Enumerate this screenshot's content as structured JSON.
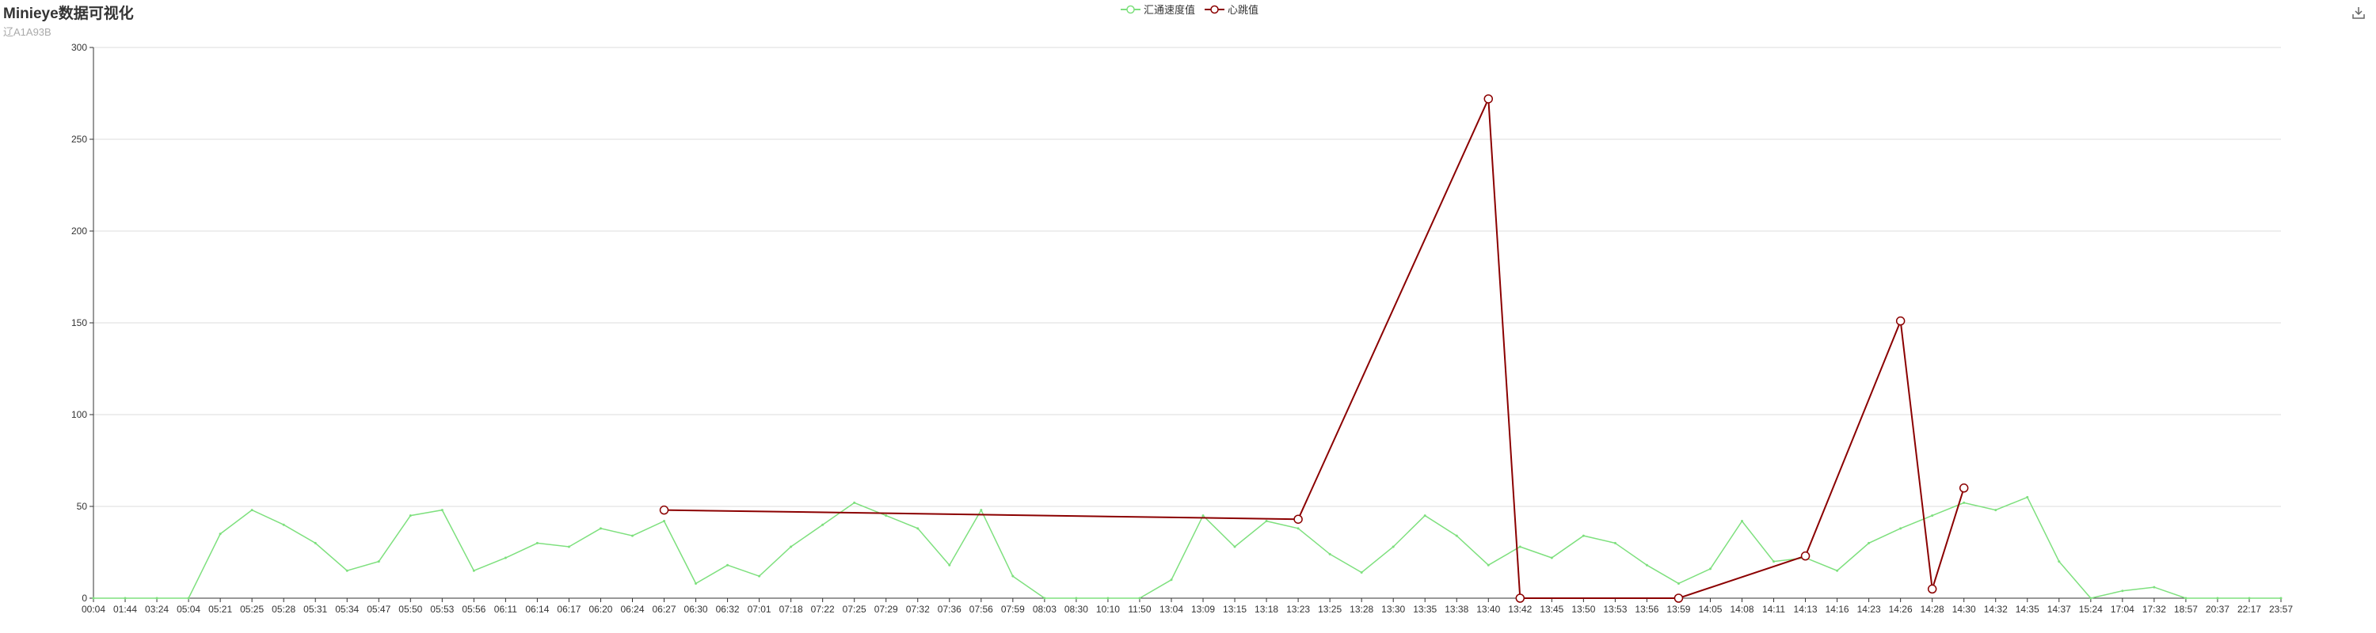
{
  "title": "Minieye数据可视化",
  "subtitle": "辽A1A93B",
  "legend": {
    "speed": "汇通速度值",
    "heartbeat": "心跳值"
  },
  "toolbox": {
    "icon": "save-as-image-icon"
  },
  "colors": {
    "speed": "#7ee07e",
    "heartbeat": "#8b0000",
    "grid": "#dddddd",
    "axis": "#333333"
  },
  "chart_data": {
    "type": "line",
    "title": "Minieye数据可视化",
    "subtitle": "辽A1A93B",
    "ylim": [
      0,
      300
    ],
    "yticks": [
      0,
      50,
      100,
      150,
      200,
      250,
      300
    ],
    "categories": [
      "00:04",
      "01:44",
      "03:24",
      "05:04",
      "05:21",
      "05:25",
      "05:28",
      "05:31",
      "05:34",
      "05:47",
      "05:50",
      "05:53",
      "05:56",
      "06:11",
      "06:14",
      "06:17",
      "06:20",
      "06:24",
      "06:27",
      "06:30",
      "06:32",
      "07:01",
      "07:18",
      "07:22",
      "07:25",
      "07:29",
      "07:32",
      "07:36",
      "07:56",
      "07:59",
      "08:03",
      "08:30",
      "10:10",
      "11:50",
      "13:04",
      "13:09",
      "13:15",
      "13:18",
      "13:23",
      "13:25",
      "13:28",
      "13:30",
      "13:35",
      "13:38",
      "13:40",
      "13:42",
      "13:45",
      "13:50",
      "13:53",
      "13:56",
      "13:59",
      "14:05",
      "14:08",
      "14:11",
      "14:13",
      "14:16",
      "14:23",
      "14:26",
      "14:28",
      "14:30",
      "14:32",
      "14:35",
      "14:37",
      "15:24",
      "17:04",
      "17:32",
      "18:57",
      "20:37",
      "22:17",
      "23:57"
    ],
    "series": [
      {
        "name": "汇通速度值",
        "color": "#7ee07e",
        "values": [
          0,
          0,
          0,
          0,
          35,
          48,
          40,
          30,
          15,
          20,
          45,
          48,
          15,
          22,
          30,
          28,
          38,
          34,
          42,
          8,
          18,
          12,
          28,
          40,
          52,
          45,
          38,
          18,
          48,
          12,
          0,
          0,
          0,
          0,
          10,
          45,
          28,
          42,
          38,
          24,
          14,
          28,
          45,
          34,
          18,
          28,
          22,
          34,
          30,
          18,
          8,
          16,
          42,
          20,
          22,
          15,
          30,
          38,
          45,
          52,
          48,
          55,
          20,
          0,
          4,
          6,
          0,
          0,
          0,
          0
        ]
      },
      {
        "name": "心跳值",
        "color": "#8b0000",
        "points": [
          {
            "x": "06:27",
            "y": 48
          },
          {
            "x": "13:23",
            "y": 43
          },
          {
            "x": "13:40",
            "y": 272
          },
          {
            "x": "13:42",
            "y": 0
          },
          {
            "x": "13:59",
            "y": 0
          },
          {
            "x": "14:13",
            "y": 23
          },
          {
            "x": "14:26",
            "y": 151
          },
          {
            "x": "14:28",
            "y": 5
          },
          {
            "x": "14:30",
            "y": 60
          }
        ]
      }
    ]
  }
}
